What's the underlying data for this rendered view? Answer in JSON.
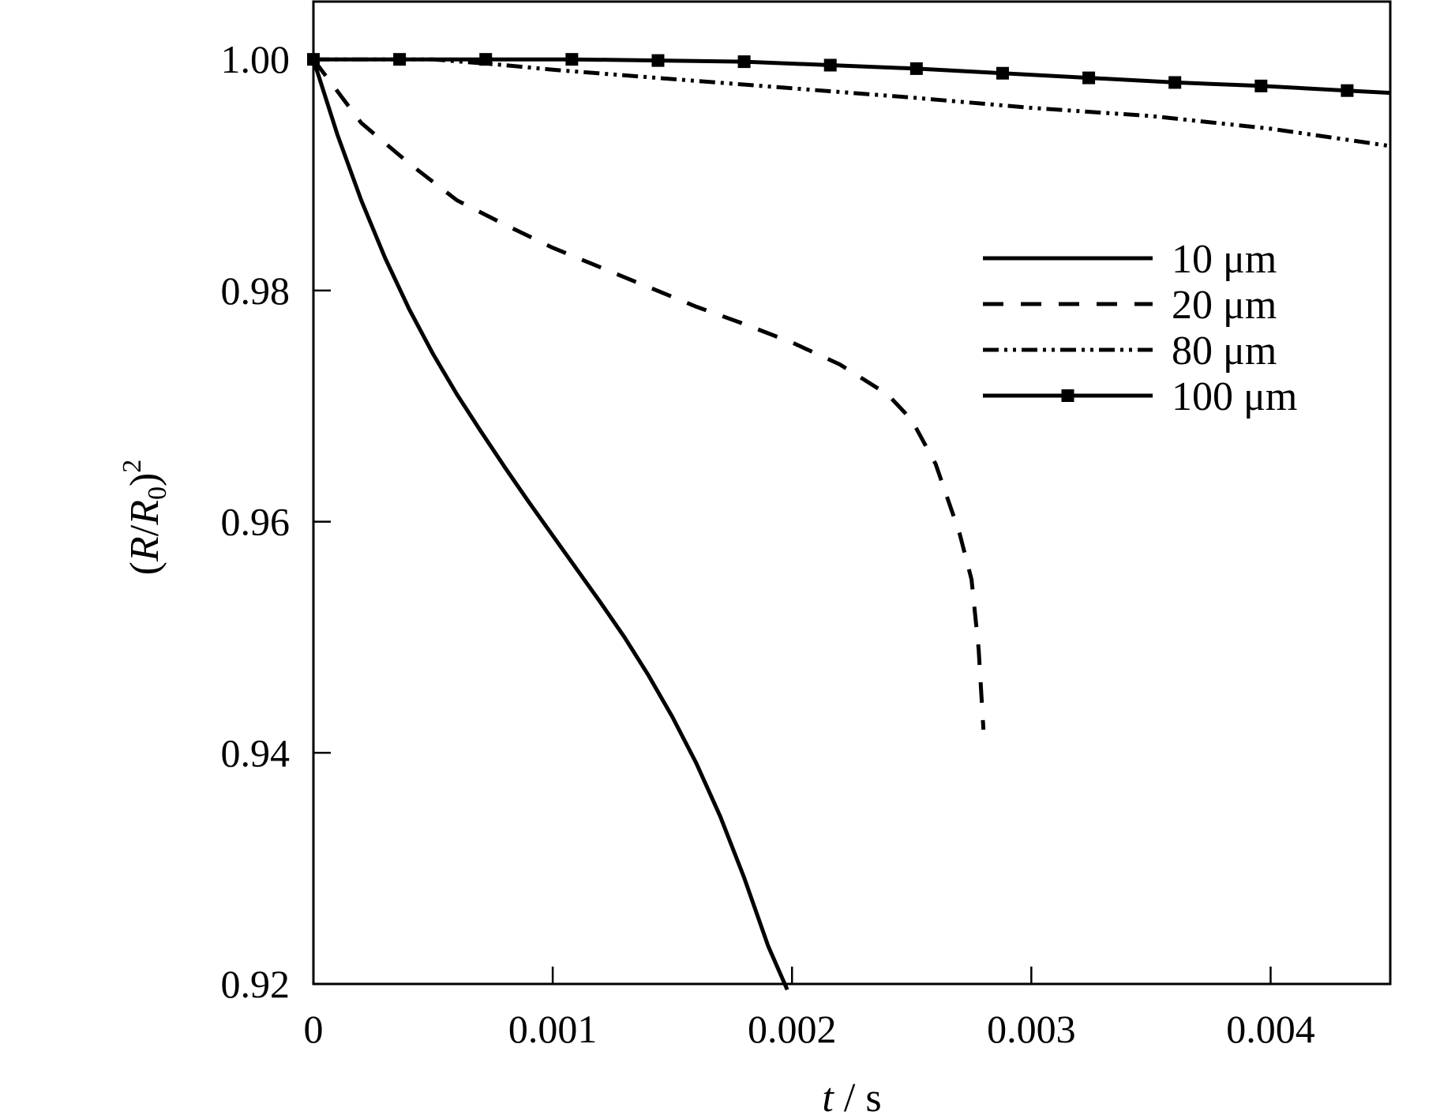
{
  "chart_data": {
    "type": "line",
    "xlabel": {
      "italic": "t",
      "rest": " / s"
    },
    "ylabel": {
      "open": "(",
      "r": "R",
      "slash": "/",
      "r0": "R",
      "sub": "0",
      "close": ")",
      "sup": "2"
    },
    "xlim": [
      0,
      0.0045
    ],
    "ylim": [
      0.92,
      1.005
    ],
    "xticks": [
      0,
      0.001,
      0.002,
      0.003,
      0.004
    ],
    "xtick_labels": [
      "0",
      "0.001",
      "0.002",
      "0.003",
      "0.004"
    ],
    "yticks": [
      0.92,
      0.94,
      0.96,
      0.98,
      1.0
    ],
    "ytick_labels": [
      "0.92",
      "0.94",
      "0.96",
      "0.98",
      "1.00"
    ],
    "grid": false,
    "legend_position": "top-right",
    "series": [
      {
        "name": "10 μm",
        "style": "solid",
        "x": [
          0,
          0.0001,
          0.0002,
          0.0003,
          0.0004,
          0.0005,
          0.0006,
          0.0007,
          0.0008,
          0.0009,
          0.001,
          0.0011,
          0.0012,
          0.0013,
          0.0014,
          0.0015,
          0.0016,
          0.0017,
          0.0018,
          0.0019,
          0.00198
        ],
        "y": [
          1.0,
          0.9935,
          0.9878,
          0.9828,
          0.9784,
          0.9745,
          0.971,
          0.9678,
          0.9647,
          0.9617,
          0.9588,
          0.9559,
          0.953,
          0.95,
          0.9467,
          0.9431,
          0.9391,
          0.9345,
          0.9292,
          0.9233,
          0.9195
        ]
      },
      {
        "name": "20 μm",
        "style": "dashed",
        "x": [
          0,
          0.0002,
          0.0004,
          0.0006,
          0.0008,
          0.001,
          0.0012,
          0.0014,
          0.0016,
          0.0018,
          0.002,
          0.0022,
          0.0024,
          0.0025,
          0.0026,
          0.0027,
          0.00275,
          0.00278,
          0.0028
        ],
        "y": [
          1.0,
          0.9945,
          0.991,
          0.9878,
          0.9857,
          0.9837,
          0.982,
          0.9803,
          0.9786,
          0.9771,
          0.9755,
          0.9736,
          0.971,
          0.9688,
          0.965,
          0.959,
          0.955,
          0.949,
          0.942
        ]
      },
      {
        "name": "80 μm",
        "style": "dash-dot-dot",
        "x": [
          0,
          0.0005,
          0.0008,
          0.001,
          0.0015,
          0.002,
          0.0025,
          0.003,
          0.0035,
          0.004,
          0.0045
        ],
        "y": [
          1.0,
          1.0,
          0.9995,
          0.9991,
          0.9983,
          0.9975,
          0.9967,
          0.9958,
          0.9951,
          0.994,
          0.9925
        ]
      },
      {
        "name": "100 μm",
        "style": "solid-square-markers",
        "x": [
          0,
          0.00036,
          0.00072,
          0.00108,
          0.00144,
          0.0018,
          0.00216,
          0.00252,
          0.00288,
          0.00324,
          0.0036,
          0.00396,
          0.00432,
          0.0045
        ],
        "y": [
          1.0,
          1.0,
          1.0,
          1.0,
          0.9999,
          0.9998,
          0.9995,
          0.9992,
          0.9988,
          0.9984,
          0.998,
          0.9977,
          0.9973,
          0.9971
        ],
        "markers_x": [
          0,
          0.00036,
          0.00072,
          0.00108,
          0.00144,
          0.0018,
          0.00216,
          0.00252,
          0.00288,
          0.00324,
          0.0036,
          0.00396,
          0.00432
        ]
      }
    ]
  }
}
